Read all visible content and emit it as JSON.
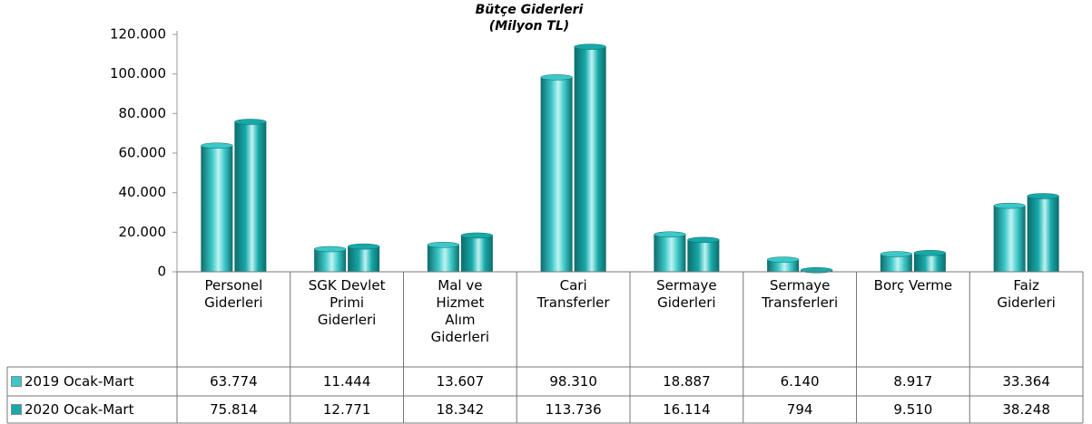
{
  "chart_data": {
    "type": "bar",
    "title": "Bütçe Giderleri",
    "subtitle": "(Milyon TL)",
    "categories": [
      "Personel Giderleri",
      "SGK Devlet Primi Giderleri",
      "Mal ve Hizmet Alım Giderleri",
      "Cari Transferler",
      "Sermaye Giderleri",
      "Sermaye Transferleri",
      "Borç Verme",
      "Faiz Giderleri"
    ],
    "series": [
      {
        "name": "2019 Ocak-Mart",
        "color": "#3cc8c8",
        "values": [
          63774,
          11444,
          13607,
          98310,
          18887,
          6140,
          8917,
          33364
        ],
        "value_labels": [
          "63.774",
          "11.444",
          "13.607",
          "98.310",
          "18.887",
          "6.140",
          "8.917",
          "33.364"
        ]
      },
      {
        "name": "2020 Ocak-Mart",
        "color": "#17a9a9",
        "values": [
          75814,
          12771,
          18342,
          113736,
          16114,
          794,
          9510,
          38248
        ],
        "value_labels": [
          "75.814",
          "12.771",
          "18.342",
          "113.736",
          "16.114",
          "794",
          "9.510",
          "38.248"
        ]
      }
    ],
    "ylim": [
      0,
      120000
    ],
    "yticks": [
      0,
      {
        "value": 20000,
        "label": "20.000"
      },
      {
        "value": 40000,
        "label": "40.000"
      },
      {
        "value": 60000,
        "label": "60.000"
      },
      {
        "value": 80000,
        "label": "80.000"
      },
      {
        "value": 100000,
        "label": "100.000"
      },
      {
        "value": 120000,
        "label": "120.000"
      }
    ],
    "grid": false
  }
}
